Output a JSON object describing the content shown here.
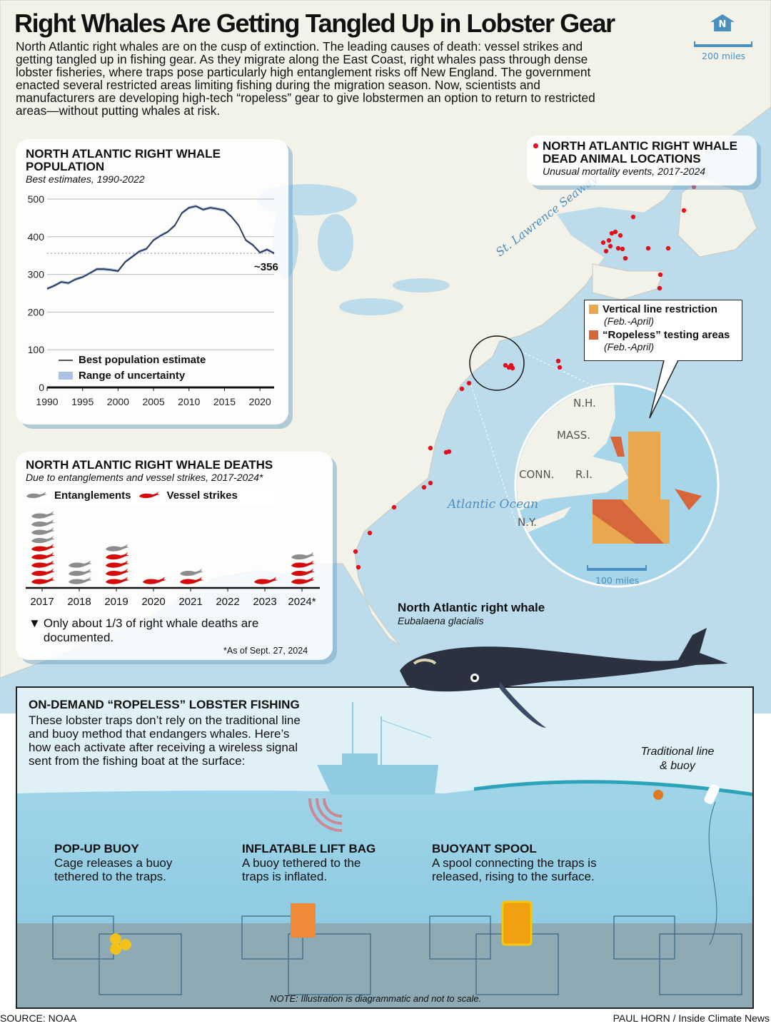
{
  "title": "Right Whales Are Getting Tangled Up in Lobster Gear",
  "intro": "North Atlantic right whales are on the cusp of extinction. The leading causes of death: vessel strikes and getting tangled up in fishing gear. As they migrate along the East Coast, right whales pass through dense lobster fisheries, where traps pose particularly high entanglement risks off New England. The government enacted several restricted areas limiting fishing during the migration season. Now, scientists and manufacturers are developing high-tech “ropeless” gear to give lobstermen an option to return to restricted areas—without putting whales at risk.",
  "map": {
    "north_label": "N",
    "scale_label": "200 miles",
    "seaway_label": "St. Lawrence Seaway",
    "ocean_label": "Atlantic Ocean",
    "dead_locations": {
      "title": "NORTH ATLANTIC RIGHT WHALE DEAD ANIMAL LOCATIONS",
      "subtitle": "Unusual mortality events, 2017-2024",
      "color": "#e0101e"
    },
    "legend": [
      {
        "label": "Vertical line restriction",
        "note": "(Feb.-April)",
        "color": "#eaa84e"
      },
      {
        "label": "“Ropeless” testing areas",
        "note": "(Feb.-April)",
        "color": "#d5673a"
      }
    ],
    "inset": {
      "states": [
        "N.H.",
        "MASS.",
        "CONN.",
        "R.I.",
        "N.Y."
      ],
      "scale_label": "100 miles"
    }
  },
  "chart_data": [
    {
      "type": "line",
      "title": "NORTH ATLANTIC RIGHT WHALE POPULATION",
      "subtitle": "Best estimates, 1990-2022",
      "x": [
        1990,
        1991,
        1992,
        1993,
        1994,
        1995,
        1996,
        1997,
        1998,
        1999,
        2000,
        2001,
        2002,
        2003,
        2004,
        2005,
        2006,
        2007,
        2008,
        2009,
        2010,
        2011,
        2012,
        2013,
        2014,
        2015,
        2016,
        2017,
        2018,
        2019,
        2020,
        2021,
        2022
      ],
      "series": [
        {
          "name": "Best population estimate",
          "values": [
            262,
            270,
            280,
            277,
            287,
            293,
            303,
            314,
            314,
            312,
            309,
            333,
            347,
            361,
            368,
            391,
            403,
            413,
            430,
            463,
            477,
            481,
            472,
            477,
            474,
            470,
            453,
            430,
            391,
            378,
            358,
            366,
            356
          ]
        }
      ],
      "uncertainty_label": "Range of uncertainty",
      "annotation": "~356",
      "reference_line": 356,
      "ylim": [
        0,
        500
      ],
      "yticks": [
        "0",
        "100",
        "200",
        "300",
        "400",
        "500"
      ],
      "xticks": [
        "1990",
        "1995",
        "2000",
        "2005",
        "2010",
        "2015",
        "2020"
      ],
      "xlim": [
        1990,
        2022
      ],
      "grid": true,
      "colors": {
        "line": "#2a3550",
        "band": "#a9c0e2"
      }
    },
    {
      "type": "bar",
      "stacked": true,
      "title": "NORTH ATLANTIC RIGHT WHALE DEATHS",
      "subtitle": "Due to entanglements and vessel strikes, 2017-2024*",
      "categories": [
        "2017",
        "2018",
        "2019",
        "2020",
        "2021",
        "2022",
        "2023",
        "2024*"
      ],
      "series": [
        {
          "name": "Vessel strikes",
          "values": [
            5,
            0,
            4,
            1,
            1,
            0,
            1,
            3
          ],
          "color": "#d40b0b"
        },
        {
          "name": "Entanglements",
          "values": [
            4,
            3,
            1,
            0,
            1,
            0,
            0,
            1
          ],
          "color": "#8c8c8c"
        }
      ],
      "note": "Only about 1/3 of right whale deaths are documented.",
      "footnote": "*As of Sept. 27, 2024"
    }
  ],
  "whale": {
    "name": "North Atlantic right whale",
    "species": "Eubalaena glacialis"
  },
  "ropeless": {
    "title": "ON-DEMAND “ROPELESS” LOBSTER FISHING",
    "text": "These lobster traps don’t rely on the traditional line and buoy method that endangers whales. Here’s how each activate after receiving a wireless signal sent from the fishing boat at the surface:",
    "traditional_label": "Traditional line & buoy",
    "methods": [
      {
        "title": "POP-UP BUOY",
        "text": "Cage releases a buoy tethered to the traps."
      },
      {
        "title": "INFLATABLE LIFT BAG",
        "text": "A buoy tethered to the traps is inflated."
      },
      {
        "title": "BUOYANT SPOOL",
        "text": "A spool connecting the traps is released, rising to the surface."
      }
    ],
    "note": "NOTE: Illustration is diagrammatic and not to scale."
  },
  "footer": {
    "source": "SOURCE: NOAA",
    "credit": "PAUL HORN / Inside Climate News"
  }
}
